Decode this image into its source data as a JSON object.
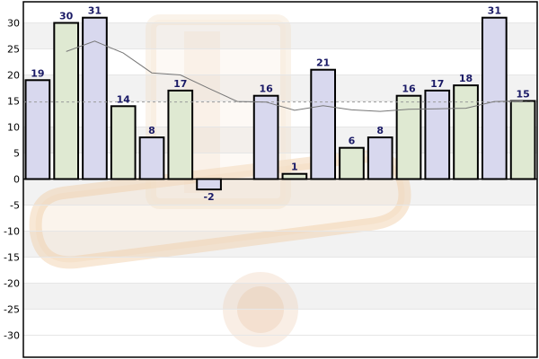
{
  "chart_data": {
    "type": "bar",
    "title": "",
    "xlabel": "",
    "ylabel": "",
    "ylim": [
      -35,
      35
    ],
    "yticks": [
      30,
      25,
      20,
      15,
      10,
      5,
      0,
      -5,
      -10,
      -15,
      -20,
      -25,
      -30
    ],
    "grid": true,
    "legend": "none",
    "values": [
      19,
      30,
      31,
      14,
      8,
      17,
      -2,
      null,
      16,
      1,
      21,
      6,
      8,
      16,
      17,
      18,
      31,
      15
    ],
    "value_labels": [
      "19",
      "30",
      "31",
      "14",
      "8",
      "17",
      "-2",
      "",
      "16",
      "1",
      "21",
      "6",
      "8",
      "16",
      "17",
      "18",
      "31",
      "15"
    ],
    "moving_average": [
      null,
      24.5,
      26.5,
      24.2,
      20.4,
      20,
      17.4,
      14.9,
      14.8,
      13.2,
      14.1,
      13.3,
      13,
      13.4,
      13.5,
      13.6,
      14.9,
      15
    ],
    "average_line": 14.8,
    "colors": {
      "bar_fill_a": "#d8d8ee",
      "bar_fill_b": "#dfe9d2",
      "bar_stroke": "#000000",
      "value_label": "#1a1a66",
      "grid_band": "#f2f2f2",
      "grid_line": "#e6e6e6",
      "axis": "#000000",
      "moving_average_line": "#777777",
      "average_line": "#9a9a9a"
    }
  }
}
